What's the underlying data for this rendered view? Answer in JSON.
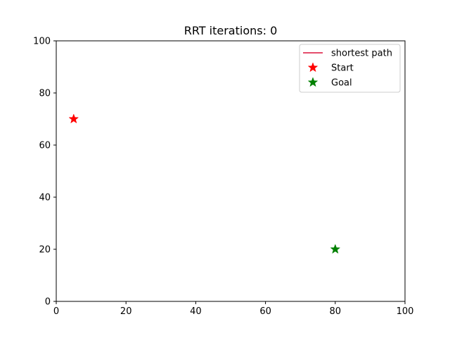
{
  "chart_data": {
    "type": "scatter",
    "title": "RRT iterations: 0",
    "xlabel": "",
    "ylabel": "",
    "xlim": [
      0,
      100
    ],
    "ylim": [
      0,
      100
    ],
    "xticks": [
      0,
      20,
      40,
      60,
      80,
      100
    ],
    "yticks": [
      0,
      20,
      40,
      60,
      80,
      100
    ],
    "grid": false,
    "legend_position": "top-right",
    "series": [
      {
        "name": "shortest path",
        "kind": "line",
        "color": "#dc143c",
        "points": []
      },
      {
        "name": "Start",
        "kind": "marker",
        "marker": "star",
        "color": "#ff0000",
        "points": [
          {
            "x": 5,
            "y": 70
          }
        ]
      },
      {
        "name": "Goal",
        "kind": "marker",
        "marker": "star",
        "color": "#008000",
        "points": [
          {
            "x": 80,
            "y": 20
          }
        ]
      }
    ]
  }
}
